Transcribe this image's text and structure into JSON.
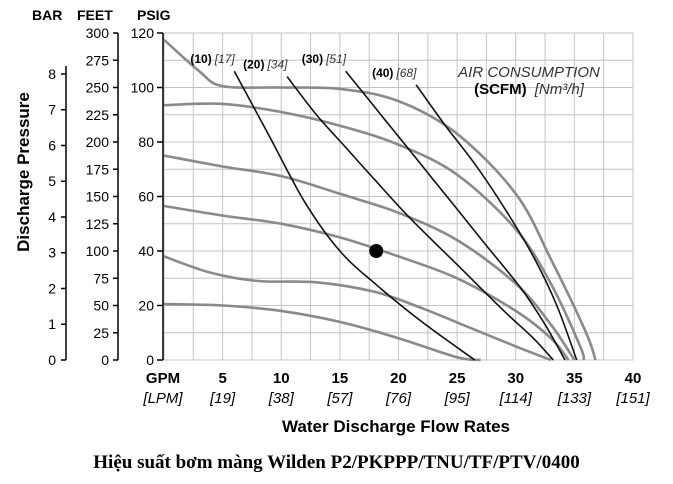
{
  "caption": "Hiệu suất bơm màng Wilden P2/PKPPP/TNU/TF/PTV/0400",
  "chart_data": {
    "type": "line",
    "xlabel": "Water Discharge Flow Rates",
    "ylabel": "Discharge Pressure",
    "x_unit_primary": "GPM",
    "x_unit_secondary": "[LPM]",
    "xlim": [
      0,
      40
    ],
    "ylim": [
      0,
      120
    ],
    "x_ticks": [
      {
        "gpm": "5",
        "lpm": "[19]"
      },
      {
        "gpm": "10",
        "lpm": "[38]"
      },
      {
        "gpm": "15",
        "lpm": "[57]"
      },
      {
        "gpm": "20",
        "lpm": "[76]"
      },
      {
        "gpm": "25",
        "lpm": "[95]"
      },
      {
        "gpm": "30",
        "lpm": "[114]"
      },
      {
        "gpm": "35",
        "lpm": "[133]"
      },
      {
        "gpm": "40",
        "lpm": "[151]"
      }
    ],
    "psig_axis": {
      "header": "PSIG",
      "ticks": [
        "0",
        "20",
        "40",
        "60",
        "80",
        "100",
        "120"
      ]
    },
    "feet_axis": {
      "header": "FEET",
      "ticks": [
        "0",
        "25",
        "50",
        "75",
        "100",
        "125",
        "150",
        "175",
        "200",
        "225",
        "250",
        "275",
        "300"
      ]
    },
    "bar_axis": {
      "header": "BAR",
      "ticks": [
        "0",
        "1",
        "2",
        "3",
        "4",
        "5",
        "6",
        "7",
        "8"
      ]
    },
    "legend_title": {
      "line1": "AIR CONSUMPTION",
      "line2_bold": "(SCFM)",
      "line2_italic": "[Nm³/h]"
    },
    "pressure_curves": [
      {
        "points": [
          [
            0,
            20.5
          ],
          [
            5,
            20
          ],
          [
            10,
            18
          ],
          [
            15,
            14
          ],
          [
            20,
            8
          ],
          [
            25,
            1
          ],
          [
            27,
            0
          ]
        ]
      },
      {
        "points": [
          [
            0,
            38
          ],
          [
            4,
            32
          ],
          [
            8,
            29
          ],
          [
            13,
            28.5
          ],
          [
            18,
            25
          ],
          [
            22,
            19
          ],
          [
            26,
            12
          ],
          [
            30,
            5
          ],
          [
            33,
            0
          ]
        ]
      },
      {
        "points": [
          [
            0,
            56.5
          ],
          [
            5,
            53
          ],
          [
            10,
            50
          ],
          [
            15,
            45
          ],
          [
            20,
            38
          ],
          [
            25,
            30
          ],
          [
            30,
            18
          ],
          [
            33,
            8
          ],
          [
            34.5,
            0
          ]
        ]
      },
      {
        "points": [
          [
            0,
            75
          ],
          [
            5,
            71
          ],
          [
            10,
            67.5
          ],
          [
            15,
            61
          ],
          [
            20,
            54
          ],
          [
            25,
            44
          ],
          [
            30,
            28
          ],
          [
            33,
            13
          ],
          [
            35,
            0
          ]
        ]
      },
      {
        "points": [
          [
            0,
            93.5
          ],
          [
            5,
            94
          ],
          [
            10,
            91
          ],
          [
            15,
            86
          ],
          [
            20,
            79
          ],
          [
            25,
            68
          ],
          [
            30,
            48
          ],
          [
            33,
            28
          ],
          [
            35.5,
            5
          ],
          [
            35.8,
            0
          ]
        ]
      },
      {
        "points": [
          [
            0,
            117.5
          ],
          [
            3,
            106
          ],
          [
            5,
            100.5
          ],
          [
            10,
            100
          ],
          [
            15,
            99.5
          ],
          [
            20,
            95
          ],
          [
            25,
            83
          ],
          [
            30,
            61
          ],
          [
            33,
            37
          ],
          [
            36,
            10
          ],
          [
            36.8,
            0
          ]
        ]
      }
    ],
    "air_curves": [
      {
        "label": "(10)",
        "label_nm3h": "[17]",
        "points": [
          [
            6,
            106
          ],
          [
            9,
            82
          ],
          [
            12,
            58
          ],
          [
            15,
            40
          ],
          [
            18,
            28
          ],
          [
            22,
            14
          ],
          [
            26.5,
            0
          ]
        ]
      },
      {
        "label": "(20)",
        "label_nm3h": "[34]",
        "points": [
          [
            10.5,
            104
          ],
          [
            13,
            90
          ],
          [
            15.5,
            78
          ],
          [
            18,
            66
          ],
          [
            21,
            52
          ],
          [
            25,
            35
          ],
          [
            29,
            18
          ],
          [
            31.5,
            8
          ],
          [
            33.2,
            0
          ]
        ]
      },
      {
        "label": "(30)",
        "label_nm3h": "[51]",
        "points": [
          [
            15.5,
            106
          ],
          [
            18.5,
            90
          ],
          [
            21.5,
            74
          ],
          [
            24.5,
            58
          ],
          [
            27.5,
            42
          ],
          [
            30.5,
            26
          ],
          [
            32.5,
            13
          ],
          [
            34.2,
            0
          ]
        ]
      },
      {
        "label": "(40)",
        "label_nm3h": "[68]",
        "points": [
          [
            21.5,
            101
          ],
          [
            24,
            86
          ],
          [
            26.5,
            72
          ],
          [
            29,
            56
          ],
          [
            31.5,
            38
          ],
          [
            33.5,
            20
          ],
          [
            35.2,
            0
          ]
        ]
      }
    ],
    "marker": {
      "x": 18.1,
      "y": 40
    },
    "colors": {
      "pressure_curve": "#8a8a8a",
      "air_curve": "#111111",
      "grid": "#c4c4c4",
      "marker": "#000000",
      "legend_text": "#333333"
    }
  }
}
